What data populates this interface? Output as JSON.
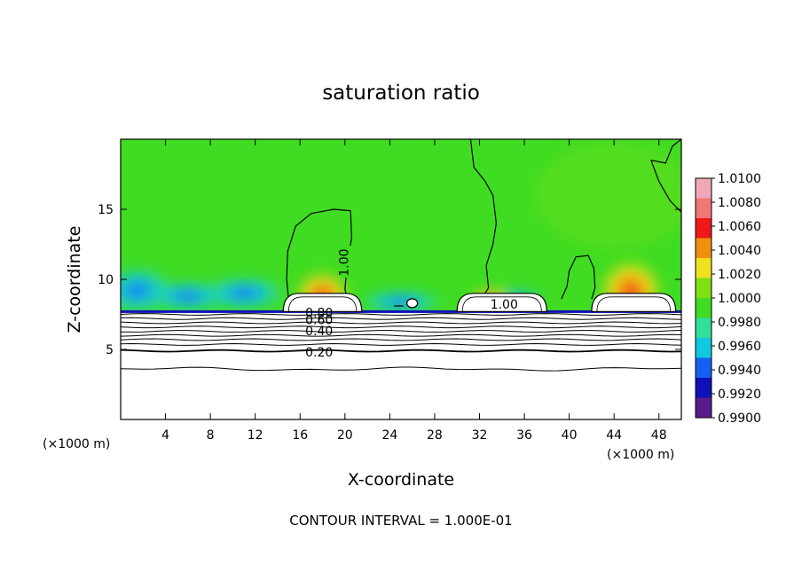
{
  "chart_data": {
    "type": "heatmap",
    "title": "saturation ratio",
    "xlabel": "X-coordinate",
    "ylabel": "Z-coordinate",
    "x_unit": "(×1000 m)",
    "x_unit_right": "(×1000 m)",
    "xlim": [
      0,
      50
    ],
    "ylim": [
      0,
      20
    ],
    "x_ticks": [
      4,
      8,
      12,
      16,
      20,
      24,
      28,
      32,
      36,
      40,
      44,
      48
    ],
    "y_ticks": [
      5,
      10,
      15
    ],
    "colorbar": {
      "levels": [
        "0.9900",
        "0.9920",
        "0.9940",
        "0.9960",
        "0.9980",
        "1.0000",
        "1.0020",
        "1.0040",
        "1.0060",
        "1.0080",
        "1.0100"
      ],
      "colors": [
        "#5a1a8c",
        "#1010b8",
        "#1560f0",
        "#10c8e0",
        "#30e098",
        "#40dc22",
        "#80e010",
        "#f0e020",
        "#f09010",
        "#f01818",
        "#f07878",
        "#f0a8b8"
      ]
    },
    "contour_labels": [
      "1.00",
      "1.00",
      "0.80",
      "0.60",
      "0.40",
      "0.20"
    ],
    "contour_interval_text": "CONTOUR INTERVAL = 1.000E-01",
    "cloud_regions_x": [
      [
        14.5,
        21.5
      ],
      [
        30,
        38
      ],
      [
        42,
        49.5
      ]
    ],
    "surface_height": 7.6
  }
}
